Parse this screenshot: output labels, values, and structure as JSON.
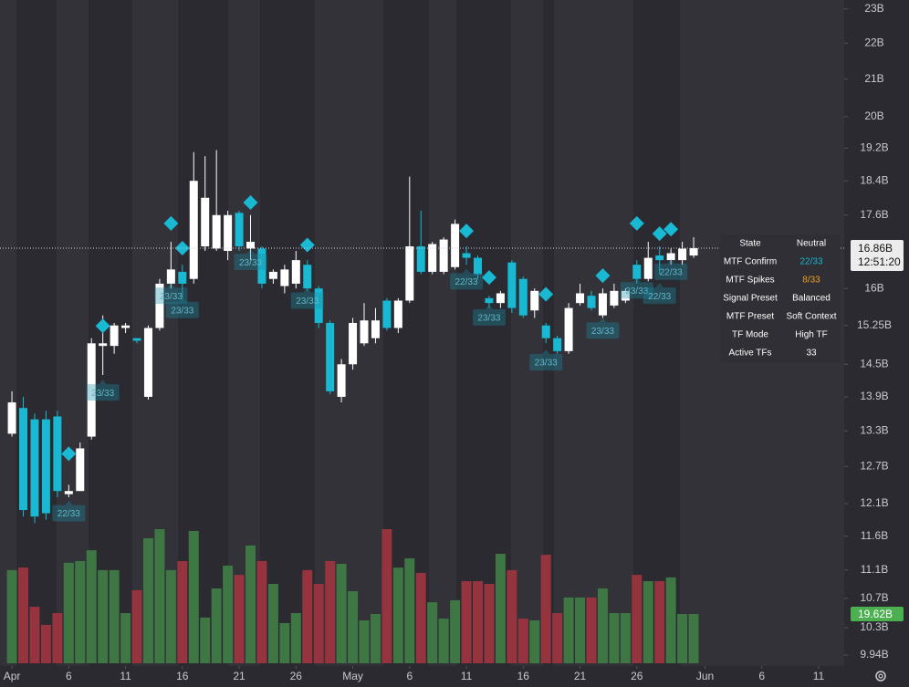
{
  "chart_data": {
    "type": "candlestick",
    "log_scale": true,
    "up_color": "#ffffff",
    "down_color": "#19b9d3",
    "volume_up_color": "#3e7644",
    "volume_down_color": "#95333f",
    "xlim": [
      -1.05,
      73.25
    ],
    "xticks": [
      {
        "value": 0,
        "label": "Apr"
      },
      {
        "value": 5,
        "label": "6"
      },
      {
        "value": 10,
        "label": "11"
      },
      {
        "value": 15,
        "label": "16"
      },
      {
        "value": 20,
        "label": "21"
      },
      {
        "value": 25,
        "label": "26"
      },
      {
        "value": 30,
        "label": "May"
      },
      {
        "value": 35,
        "label": "6"
      },
      {
        "value": 40,
        "label": "11"
      },
      {
        "value": 45,
        "label": "16"
      },
      {
        "value": 50,
        "label": "21"
      },
      {
        "value": 55,
        "label": "26"
      },
      {
        "value": 61,
        "label": "Jun"
      },
      {
        "value": 66,
        "label": "6"
      },
      {
        "value": 71,
        "label": "11"
      }
    ],
    "ylim": [
      9.8,
      23.27
    ],
    "yticks": [
      {
        "value": 23,
        "label": "23B"
      },
      {
        "value": 22,
        "label": "22B"
      },
      {
        "value": 21,
        "label": "21B"
      },
      {
        "value": 20,
        "label": "20B"
      },
      {
        "value": 19.2,
        "label": "19.2B"
      },
      {
        "value": 18.4,
        "label": "18.4B"
      },
      {
        "value": 17.6,
        "label": "17.6B"
      },
      {
        "value": 16,
        "label": "16B"
      },
      {
        "value": 15.25,
        "label": "15.25B"
      },
      {
        "value": 14.5,
        "label": "14.5B"
      },
      {
        "value": 13.9,
        "label": "13.9B"
      },
      {
        "value": 13.3,
        "label": "13.3B"
      },
      {
        "value": 12.7,
        "label": "12.7B"
      },
      {
        "value": 12.1,
        "label": "12.1B"
      },
      {
        "value": 11.6,
        "label": "11.6B"
      },
      {
        "value": 11.1,
        "label": "11.1B"
      },
      {
        "value": 10.7,
        "label": "10.7B"
      },
      {
        "value": 10.3,
        "label": "10.3B"
      },
      {
        "value": 9.94,
        "label": "9.94B"
      }
    ],
    "open": [
      13.25,
      13.7,
      13.5,
      13.5,
      13.55,
      12.25,
      12.3,
      13.2,
      14.85,
      14.85,
      15.2,
      15.0,
      13.9,
      15.2,
      16.1,
      16.35,
      16.2,
      16.9,
      16.85,
      16.8,
      17.65,
      16.85,
      16.85,
      16.2,
      16.05,
      16.1,
      16.5,
      16.0,
      15.3,
      13.9,
      14.5,
      14.9,
      15.0,
      15.75,
      15.2,
      15.75,
      16.9,
      16.35,
      16.35,
      16.45,
      16.75,
      16.65,
      15.8,
      15.7,
      16.55,
      16.2,
      15.55,
      15.25,
      15.0,
      14.75,
      15.7,
      15.85,
      15.45,
      15.65,
      15.75,
      16.5,
      16.2,
      16.7,
      16.6,
      16.6,
      16.7
    ],
    "high": [
      14.0,
      13.9,
      13.6,
      13.65,
      13.65,
      12.4,
      13.1,
      15.0,
      15.45,
      15.3,
      15.3,
      15.0,
      15.25,
      16.2,
      17.0,
      16.5,
      19.1,
      19.0,
      19.15,
      17.7,
      17.7,
      17.6,
      16.9,
      16.4,
      16.5,
      16.8,
      16.6,
      16.05,
      15.35,
      14.6,
      15.4,
      15.7,
      15.6,
      15.8,
      15.8,
      18.5,
      17.7,
      17.0,
      17.1,
      17.5,
      16.9,
      16.7,
      15.85,
      15.95,
      16.6,
      16.25,
      16.0,
      15.3,
      15.05,
      15.7,
      16.1,
      15.95,
      16.0,
      16.1,
      16.0,
      16.6,
      17.0,
      16.9,
      16.85,
      17.0,
      17.1
    ],
    "low": [
      13.2,
      11.9,
      11.8,
      11.85,
      12.2,
      12.2,
      12.3,
      13.15,
      14.3,
      14.7,
      15.1,
      14.9,
      13.85,
      15.15,
      16.0,
      15.8,
      16.1,
      16.8,
      16.8,
      16.6,
      16.8,
      16.6,
      16.0,
      16.1,
      15.9,
      16.0,
      15.95,
      15.2,
      13.95,
      13.8,
      14.4,
      14.85,
      14.9,
      15.15,
      15.1,
      15.7,
      16.3,
      16.3,
      16.3,
      16.4,
      16.5,
      16.2,
      15.6,
      15.6,
      15.5,
      15.4,
      15.4,
      14.9,
      14.7,
      14.7,
      15.65,
      15.55,
      15.4,
      15.6,
      15.7,
      16.1,
      16.15,
      16.3,
      16.5,
      16.5,
      16.65
    ],
    "close": [
      13.8,
      12.0,
      11.9,
      11.95,
      12.3,
      12.3,
      13.0,
      14.9,
      14.9,
      15.25,
      15.25,
      14.95,
      15.2,
      16.1,
      16.4,
      16.1,
      18.4,
      18.0,
      17.6,
      17.6,
      16.9,
      17.0,
      16.1,
      16.35,
      16.4,
      16.6,
      16.0,
      15.3,
      14.0,
      14.5,
      15.3,
      15.35,
      15.35,
      15.2,
      15.75,
      16.9,
      16.35,
      16.95,
      17.05,
      17.4,
      16.65,
      16.3,
      15.7,
      15.9,
      15.6,
      15.45,
      15.95,
      15.0,
      14.75,
      15.6,
      15.9,
      15.6,
      15.9,
      15.95,
      15.95,
      16.2,
      16.65,
      16.6,
      16.75,
      16.85,
      16.86
    ],
    "volume": [
      37.1,
      38.1,
      22.5,
      15.3,
      20.0,
      40.0,
      40.7,
      45.0,
      37.1,
      37.1,
      20.0,
      29.1,
      49.8,
      53.4,
      37.1,
      40.7,
      52.7,
      18.2,
      29.8,
      38.9,
      35.2,
      46.9,
      40.7,
      31.6,
      16.0,
      20.0,
      37.1,
      31.6,
      40.7,
      39.6,
      28.7,
      17.1,
      19.62,
      53.4,
      38.1,
      41.8,
      36.0,
      24.3,
      17.8,
      25.1,
      32.7,
      32.7,
      31.6,
      43.6,
      37.1,
      17.8,
      17.1,
      43.2,
      20.0,
      26.2,
      26.2,
      26.2,
      29.8,
      20.0,
      20.0,
      35.2,
      32.7,
      32.7,
      34.2,
      19.62,
      19.62
    ],
    "last_price": {
      "value": 16.86,
      "label": "16.86B"
    },
    "countdown": "12:51:20",
    "volume_label": "19.62B",
    "signals": [
      {
        "day": 5,
        "price": 12.91
      },
      {
        "day": 8,
        "price": 15.24
      },
      {
        "day": 14,
        "price": 17.41
      },
      {
        "day": 15,
        "price": 16.86
      },
      {
        "day": 21,
        "price": 17.89
      },
      {
        "day": 26,
        "price": 16.93
      },
      {
        "day": 40,
        "price": 17.24
      },
      {
        "day": 42,
        "price": 16.23
      },
      {
        "day": 47,
        "price": 15.88
      },
      {
        "day": 52,
        "price": 16.27
      },
      {
        "day": 55,
        "price": 17.41
      },
      {
        "day": 57,
        "price": 17.18
      },
      {
        "day": 58,
        "price": 17.28
      }
    ],
    "badges": [
      {
        "day": 8,
        "price": 13.98,
        "label": "23/33"
      },
      {
        "day": 5,
        "price": 11.95,
        "label": "22/33"
      },
      {
        "day": 14,
        "price": 15.85,
        "label": "23/33"
      },
      {
        "day": 15,
        "price": 15.56,
        "label": "23/33"
      },
      {
        "day": 21,
        "price": 16.56,
        "label": "23/33"
      },
      {
        "day": 26,
        "price": 15.75,
        "label": "23/33"
      },
      {
        "day": 40,
        "price": 16.15,
        "label": "22/33"
      },
      {
        "day": 42,
        "price": 15.41,
        "label": "23/33"
      },
      {
        "day": 47,
        "price": 14.54,
        "label": "23/33"
      },
      {
        "day": 52,
        "price": 15.15,
        "label": "23/33"
      },
      {
        "day": 55,
        "price": 15.96,
        "label": "23/33"
      },
      {
        "day": 57,
        "price": 15.85,
        "label": "22/33"
      },
      {
        "day": 58,
        "price": 16.35,
        "label": "22/33"
      }
    ],
    "info_table": [
      {
        "key": "State",
        "value": "Neutral",
        "color": "#ffffff"
      },
      {
        "key": "MTF Confirm",
        "value": "22/33",
        "color": "#19b9d3"
      },
      {
        "key": "MTF Spikes",
        "value": "8/33",
        "color": "#f0a020"
      },
      {
        "key": "Signal Preset",
        "value": "Balanced",
        "color": "#ffffff"
      },
      {
        "key": "MTF Preset",
        "value": "Soft Context",
        "color": "#ffffff"
      },
      {
        "key": "TF Mode",
        "value": "High TF",
        "color": "#ffffff"
      },
      {
        "key": "Active TFs",
        "value": "33",
        "color": "#ffffff"
      }
    ]
  }
}
